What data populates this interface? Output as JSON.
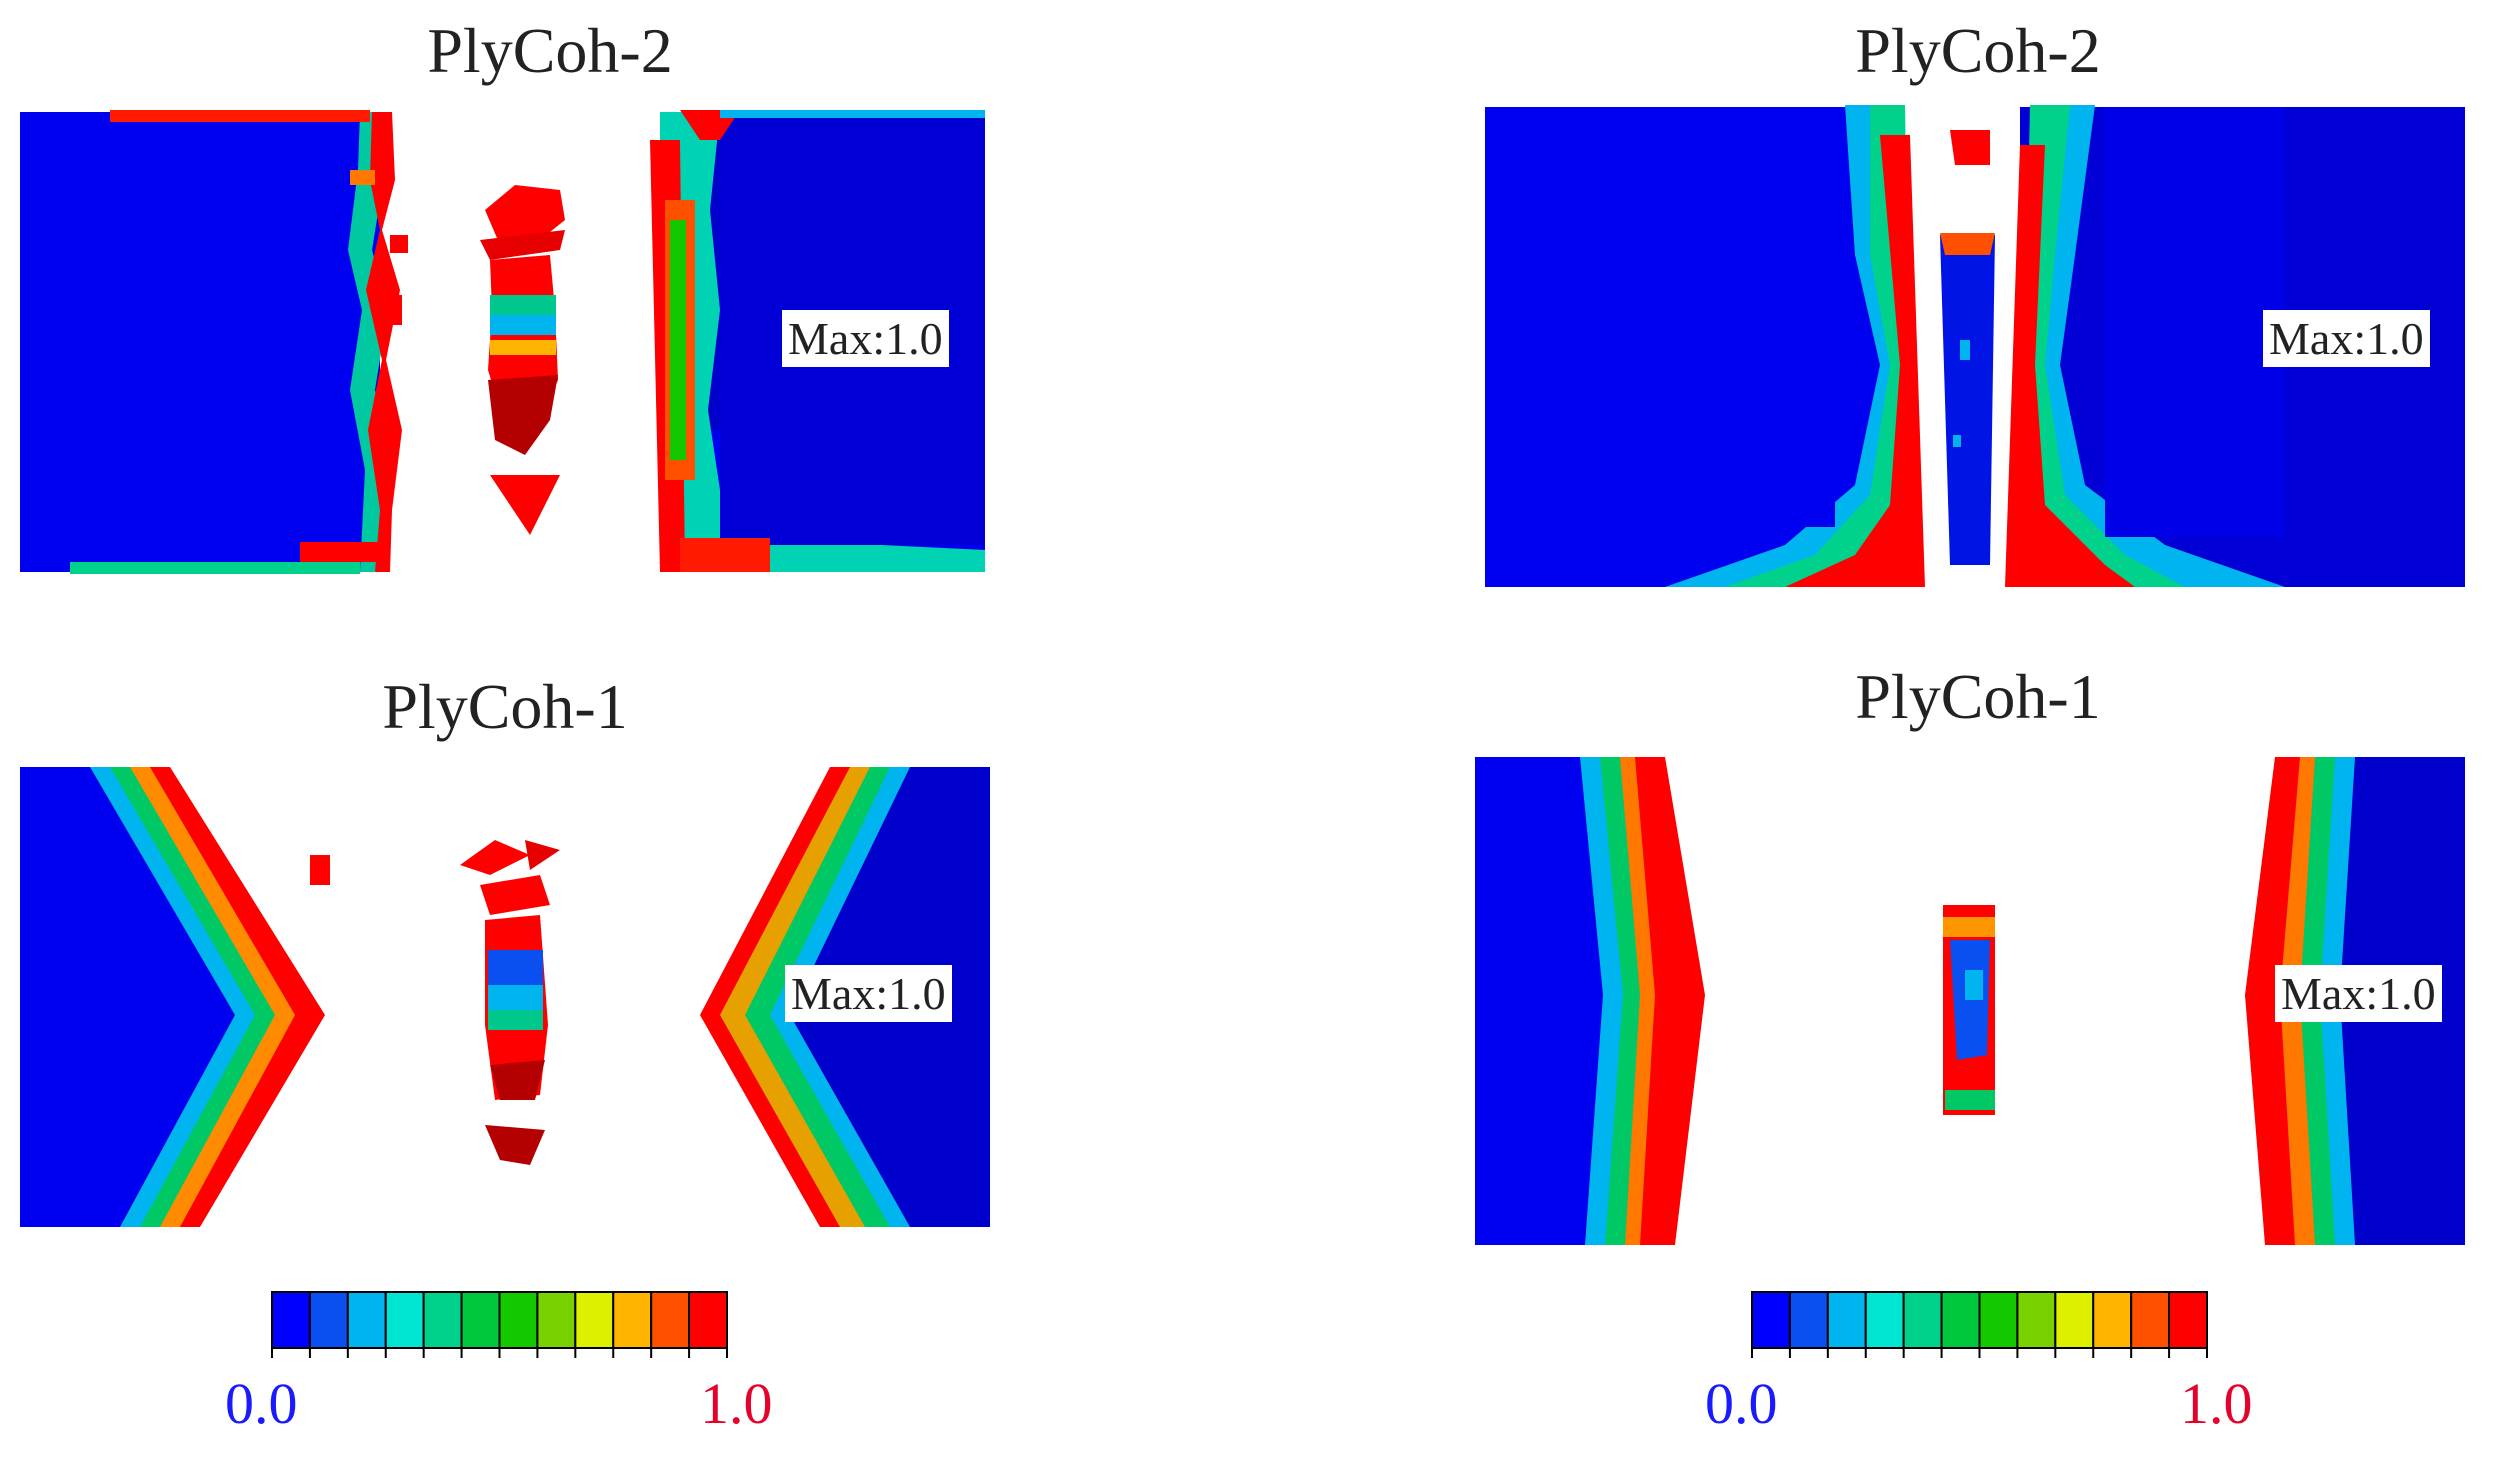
{
  "colors": {
    "blue": "#0000f0",
    "navy": "#00008f",
    "red": "#ff0000",
    "darkred": "#b40000",
    "scale": [
      "#0000ff",
      "#0a50f0",
      "#00b4f0",
      "#00e6d2",
      "#00d28c",
      "#00c83c",
      "#14c800",
      "#78d200",
      "#dcf000",
      "#ffb400",
      "#ff5000",
      "#ff0000"
    ]
  },
  "panels": [
    {
      "title": "PlyCoh-2",
      "max_label": "Max:1.0"
    },
    {
      "title": "PlyCoh-2",
      "max_label": "Max:1.0"
    },
    {
      "title": "PlyCoh-1",
      "max_label": "Max:1.0"
    },
    {
      "title": "PlyCoh-1",
      "max_label": "Max:1.0"
    }
  ],
  "colorbars": [
    {
      "min": "0.0",
      "max": "1.0",
      "min_color": "#1a1aff",
      "max_color": "#e6002a"
    },
    {
      "min": "0.0",
      "max": "1.0",
      "min_color": "#1a1aff",
      "max_color": "#e6002a"
    }
  ]
}
